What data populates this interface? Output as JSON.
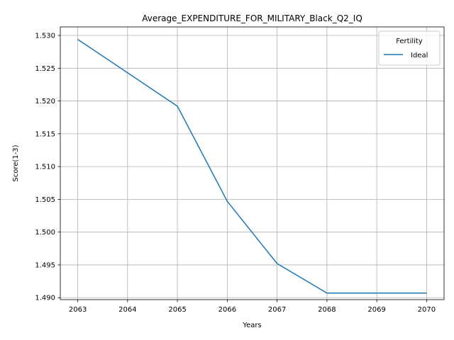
{
  "chart_data": {
    "type": "line",
    "title": "Average_EXPENDITURE_FOR_MILITARY_Black_Q2_IQ",
    "xlabel": "Years",
    "ylabel": "Score(1-3)",
    "x": [
      2063,
      2064,
      2065,
      2066,
      2067,
      2068,
      2069,
      2070
    ],
    "x_ticks": [
      "2063",
      "2064",
      "2065",
      "2066",
      "2067",
      "2068",
      "2069",
      "2070"
    ],
    "y_ticks": [
      "1.490",
      "1.495",
      "1.500",
      "1.505",
      "1.510",
      "1.515",
      "1.520",
      "1.525",
      "1.530"
    ],
    "ylim": [
      1.4897,
      1.5313
    ],
    "grid": true,
    "legend": {
      "title": "Fertility",
      "placement": "top-right"
    },
    "series": [
      {
        "name": "Ideal",
        "color": "#1f77b4",
        "values": [
          1.5294,
          1.5243,
          1.5192,
          1.5047,
          1.4952,
          1.4907,
          1.4907,
          1.4907
        ]
      }
    ]
  }
}
